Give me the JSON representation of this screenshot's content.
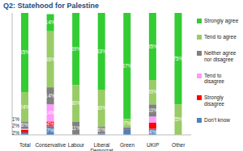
{
  "chart_data": {
    "type": "bar",
    "title": "Q2: Statehood for Palestine",
    "categories": [
      "Total",
      "Conservative",
      "Labour",
      "Liberal Democrat",
      "Green",
      "UKIP",
      "Other"
    ],
    "stacked": true,
    "data_labels": true,
    "legend": "right",
    "tick_labels": "x",
    "ylim": [
      0,
      100
    ],
    "series": [
      {
        "name": "Strongly agree",
        "color": "#33cc33",
        "values": [
          65,
          14,
          59,
          63,
          87,
          55,
          75
        ],
        "value_labels": [
          "65%",
          "14%",
          "59%",
          "63%",
          "87%",
          "55%",
          "75%"
        ]
      },
      {
        "name": "Tend to agree",
        "color": "#99cc66",
        "values": [
          24,
          46,
          30,
          30,
          7,
          20,
          25
        ],
        "value_labels": [
          "24%",
          "46%",
          "30%",
          "30%",
          "7%",
          "20%",
          "25%"
        ]
      },
      {
        "name": "Neither agree nor disagree",
        "color": "#808080",
        "values": [
          6,
          14,
          11,
          6,
          2,
          10,
          0
        ],
        "value_labels": [
          "6%",
          "14%",
          "11%",
          "6%",
          null,
          "10%",
          null
        ]
      },
      {
        "name": "Tend to disagree",
        "color": "#ff99ff",
        "values": [
          1,
          14,
          0,
          0,
          0,
          5,
          0
        ],
        "value_labels": [
          "1%",
          "14%",
          null,
          null,
          null,
          "5%",
          null
        ]
      },
      {
        "name": "Strongly disagree",
        "color": "#ff0000",
        "values": [
          2,
          4,
          0,
          0,
          0,
          5,
          0
        ],
        "value_labels": [
          "2%",
          "4%",
          null,
          null,
          null,
          "5%",
          null
        ]
      },
      {
        "name": "Don't know",
        "color": "#4f81bd",
        "values": [
          2,
          7,
          0,
          1,
          4,
          5,
          0
        ],
        "value_labels": [
          "2%",
          "7%",
          null,
          null,
          "4%",
          "5%",
          null
        ]
      }
    ]
  }
}
